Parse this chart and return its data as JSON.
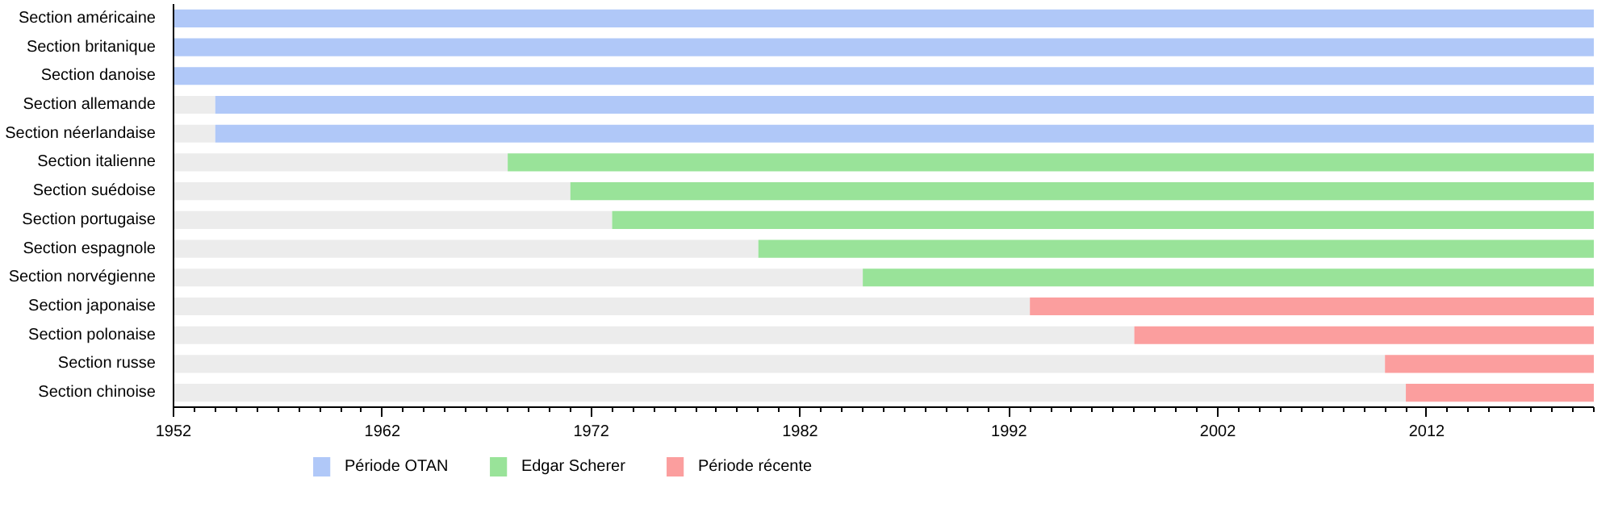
{
  "chart_data": {
    "type": "bar",
    "orientation": "horizontal",
    "categories": [
      "Section américaine",
      "Section britanique",
      "Section danoise",
      "Section allemande",
      "Section néerlandaise",
      "Section italienne",
      "Section suédoise",
      "Section portugaise",
      "Section espagnole",
      "Section norvégienne",
      "Section japonaise",
      "Section polonaise",
      "Section russe",
      "Section chinoise"
    ],
    "xlim": [
      1952,
      2020
    ],
    "xticks": [
      1952,
      1962,
      1972,
      1982,
      1992,
      2002,
      2012
    ],
    "series": [
      {
        "color": "#ececec",
        "base": [
          null,
          null,
          null,
          1952,
          1952,
          1952,
          1952,
          1952,
          1952,
          1952,
          1952,
          1952,
          1952,
          1952
        ],
        "values": [
          null,
          null,
          null,
          2,
          2,
          16,
          19,
          21,
          28,
          33,
          41,
          46,
          58,
          59
        ]
      },
      {
        "name": "Période OTAN",
        "color": "#b0c8f8",
        "base": [
          1952,
          1952,
          1952,
          1954,
          1954,
          null,
          null,
          null,
          null,
          null,
          null,
          null,
          null,
          null
        ],
        "values": [
          68,
          68,
          68,
          66,
          66,
          null,
          null,
          null,
          null,
          null,
          null,
          null,
          null,
          null
        ]
      },
      {
        "name": "Edgar Scherer",
        "color": "#99e399",
        "base": [
          null,
          null,
          null,
          null,
          null,
          1968,
          1971,
          1973,
          1980,
          1985,
          null,
          null,
          null,
          null
        ],
        "values": [
          null,
          null,
          null,
          null,
          null,
          52,
          49,
          47,
          40,
          35,
          null,
          null,
          null,
          null
        ]
      },
      {
        "name": "Période récente",
        "color": "#fb9e9e",
        "base": [
          null,
          null,
          null,
          null,
          null,
          null,
          null,
          null,
          null,
          null,
          1993,
          1998,
          2010,
          2011
        ],
        "values": [
          null,
          null,
          null,
          null,
          null,
          null,
          null,
          null,
          null,
          null,
          27,
          22,
          10,
          9
        ]
      }
    ],
    "legend": "bottom",
    "grid": false
  }
}
